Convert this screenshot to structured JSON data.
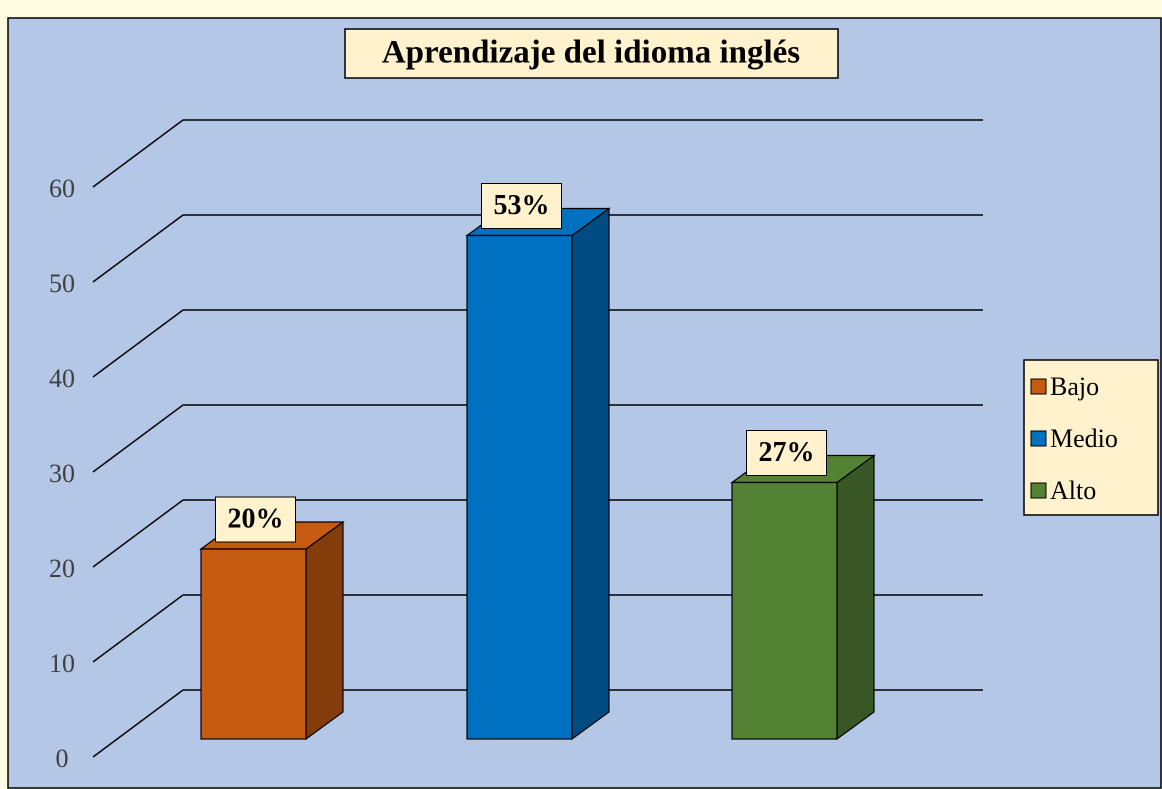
{
  "chart_data": {
    "type": "bar3d",
    "title": "Aprendizaje del idioma inglés",
    "categories": [
      "Bajo",
      "Medio",
      "Alto"
    ],
    "values": [
      20,
      53,
      27
    ],
    "value_labels": [
      "20%",
      "53%",
      "27%"
    ],
    "colors": [
      "#c55a11",
      "#0070c0",
      "#548235"
    ],
    "ylim": [
      0,
      60
    ],
    "yticks": [
      0,
      10,
      20,
      30,
      40,
      50,
      60
    ],
    "grid": true,
    "legend": "right"
  }
}
